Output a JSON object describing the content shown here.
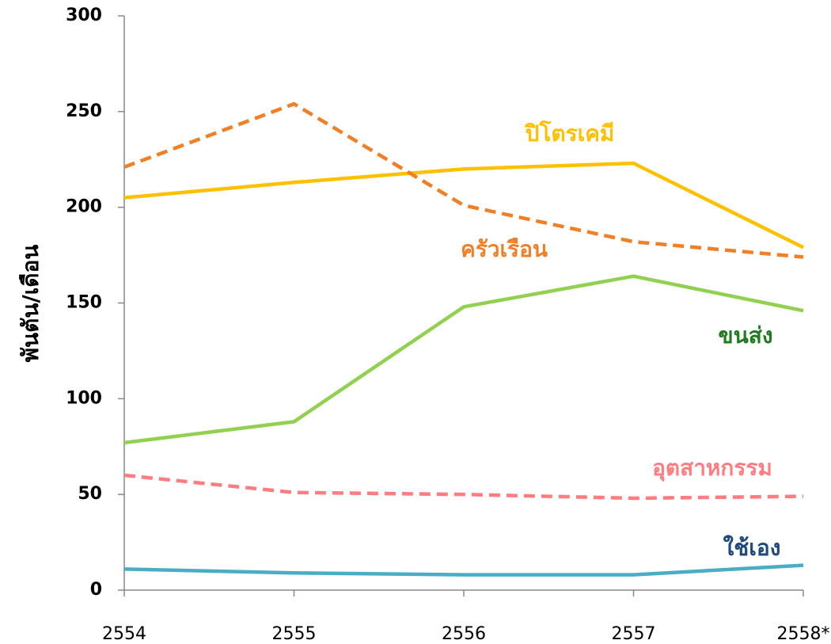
{
  "chart_data": {
    "type": "line",
    "y_label": "พันตัน/เดือน",
    "categories": [
      "2554",
      "2555",
      "2556",
      "2557",
      "2558*"
    ],
    "ylim": [
      0,
      300
    ],
    "yticks": [
      0,
      50,
      100,
      150,
      200,
      250,
      300
    ],
    "grid": false,
    "series": [
      {
        "name": "ปิโตรเคมี",
        "color": "#FFC000",
        "label_color": "#FFC000",
        "dash": false,
        "values": [
          205,
          213,
          220,
          223,
          179
        ]
      },
      {
        "name": "ครัวเรือน",
        "color": "#F07F25",
        "label_color": "#F07F25",
        "dash": true,
        "values": [
          221,
          254,
          201,
          182,
          174
        ]
      },
      {
        "name": "ขนส่ง",
        "color": "#92D050",
        "label_color": "#1E7B1E",
        "dash": false,
        "values": [
          77,
          88,
          148,
          164,
          146
        ]
      },
      {
        "name": "อุตสาหกรรม",
        "color": "#FF7C80",
        "label_color": "#FF7C80",
        "dash": true,
        "values": [
          60,
          51,
          50,
          48,
          49
        ]
      },
      {
        "name": "ใช้เอง",
        "color": "#4BACC6",
        "label_color": "#1F497D",
        "dash": false,
        "values": [
          11,
          9,
          8,
          8,
          13
        ]
      }
    ]
  }
}
